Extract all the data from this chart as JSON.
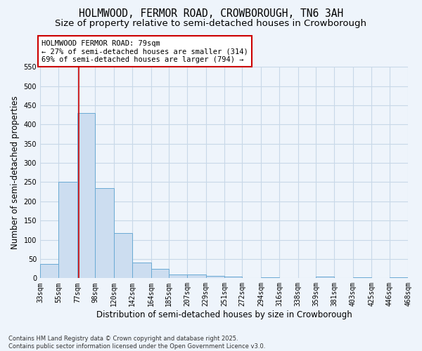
{
  "title": "HOLMWOOD, FERMOR ROAD, CROWBOROUGH, TN6 3AH",
  "subtitle": "Size of property relative to semi-detached houses in Crowborough",
  "xlabel": "Distribution of semi-detached houses by size in Crowborough",
  "ylabel": "Number of semi-detached properties",
  "footnote": "Contains HM Land Registry data © Crown copyright and database right 2025.\nContains public sector information licensed under the Open Government Licence v3.0.",
  "bins": [
    33,
    55,
    77,
    98,
    120,
    142,
    164,
    185,
    207,
    229,
    251,
    272,
    294,
    316,
    338,
    359,
    381,
    403,
    425,
    446,
    468
  ],
  "bar_heights": [
    38,
    250,
    430,
    235,
    118,
    40,
    25,
    10,
    10,
    7,
    4,
    0,
    2,
    0,
    0,
    4,
    0,
    3,
    0,
    3
  ],
  "bar_color": "#ccddf0",
  "bar_edgecolor": "#6aaad4",
  "grid_color": "#c8d8e8",
  "background_color": "#eef4fb",
  "property_size": 79,
  "annotation_text": "HOLMWOOD FERMOR ROAD: 79sqm\n← 27% of semi-detached houses are smaller (314)\n69% of semi-detached houses are larger (794) →",
  "annotation_box_color": "#ffffff",
  "annotation_border_color": "#cc0000",
  "vline_color": "#cc0000",
  "ylim": [
    0,
    550
  ],
  "yticks": [
    0,
    50,
    100,
    150,
    200,
    250,
    300,
    350,
    400,
    450,
    500,
    550
  ],
  "title_fontsize": 10.5,
  "subtitle_fontsize": 9.5,
  "label_fontsize": 8.5,
  "tick_fontsize": 7,
  "annot_fontsize": 7.5
}
